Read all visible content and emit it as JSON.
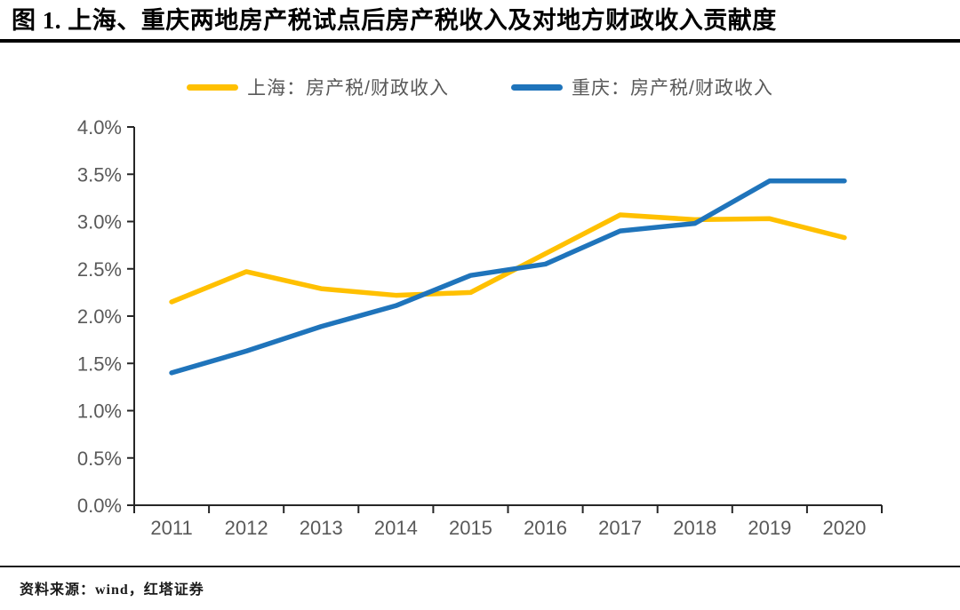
{
  "page": {
    "title": "图 1. 上海、重庆两地房产税试点后房产税收入及对地方财政收入贡献度",
    "source_note": "资料来源：wind，红塔证券"
  },
  "chart_data": {
    "type": "line",
    "title": "上海、重庆两地房产税试点后房产税收入及对地方财政收入贡献度",
    "categories": [
      "2011",
      "2012",
      "2013",
      "2014",
      "2015",
      "2016",
      "2017",
      "2018",
      "2019",
      "2020"
    ],
    "series": [
      {
        "name": "上海：房产税/财政收入",
        "color": "#FFC000",
        "values": [
          2.15,
          2.47,
          2.29,
          2.22,
          2.25,
          2.66,
          3.07,
          3.02,
          3.03,
          2.83
        ]
      },
      {
        "name": "重庆：房产税/财政收入",
        "color": "#1F74BB",
        "values": [
          1.4,
          1.63,
          1.89,
          2.11,
          2.43,
          2.55,
          2.9,
          2.98,
          3.43,
          3.43
        ]
      }
    ],
    "xlabel": "",
    "ylabel": "",
    "ylim": [
      0,
      4
    ],
    "ytick_step": 0.5,
    "ytick_labels": [
      "0.0%",
      "0.5%",
      "1.0%",
      "1.5%",
      "2.0%",
      "2.5%",
      "3.0%",
      "3.5%",
      "4.0%"
    ],
    "grid": false,
    "legend_position": "top"
  },
  "colors": {
    "axis_line": "#262626",
    "axis_text": "#595959",
    "title_rule": "#000000"
  }
}
